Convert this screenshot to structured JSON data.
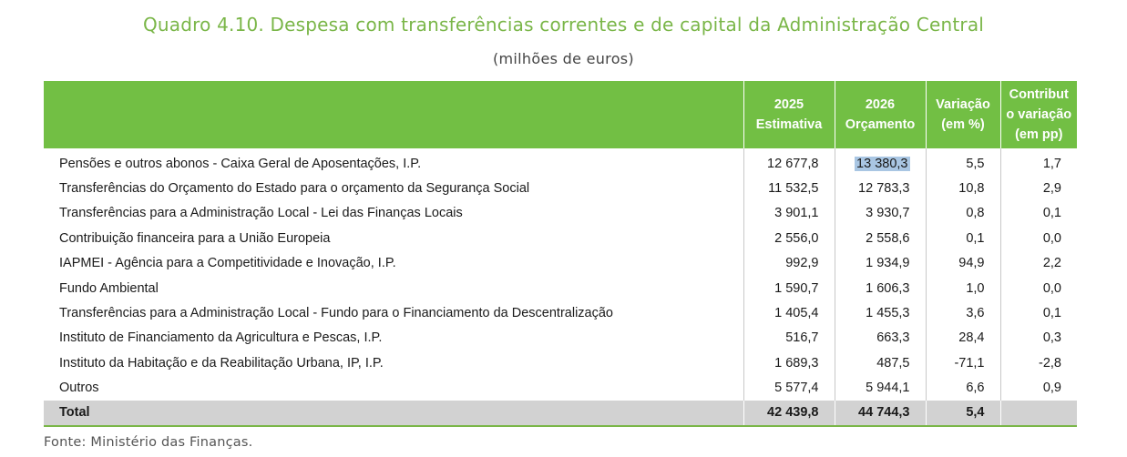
{
  "title": "Quadro 4.10. Despesa com transferências correntes e de capital da Administração Central",
  "subtitle": "(milhões de euros)",
  "headers": {
    "col1": [
      "2025",
      "Estimativa"
    ],
    "col2": [
      "2026",
      "Orçamento"
    ],
    "col3": [
      "Variação",
      "(em %)"
    ],
    "col4": [
      "Contribut",
      "o variação",
      "(em pp)"
    ]
  },
  "rows": [
    {
      "label": "Pensões e outros abonos - Caixa Geral de Aposentações, I.P.",
      "v2025": "12 677,8",
      "v2026": "13 380,3",
      "var": "5,5",
      "contrib": "1,7"
    },
    {
      "label": "Transferências do Orçamento do Estado para o orçamento da Segurança Social",
      "v2025": "11 532,5",
      "v2026": "12 783,3",
      "var": "10,8",
      "contrib": "2,9"
    },
    {
      "label": "Transferências para a Administração Local - Lei das Finanças Locais",
      "v2025": "3 901,1",
      "v2026": "3 930,7",
      "var": "0,8",
      "contrib": "0,1"
    },
    {
      "label": "Contribuição financeira para a União Europeia",
      "v2025": "2 556,0",
      "v2026": "2 558,6",
      "var": "0,1",
      "contrib": "0,0"
    },
    {
      "label": "IAPMEI - Agência para a Competitividade e Inovação, I.P.",
      "v2025": "992,9",
      "v2026": "1 934,9",
      "var": "94,9",
      "contrib": "2,2"
    },
    {
      "label": "Fundo Ambiental",
      "v2025": "1 590,7",
      "v2026": "1 606,3",
      "var": "1,0",
      "contrib": "0,0"
    },
    {
      "label": "Transferências para a Administração Local - Fundo para o Financiamento da Descentralização",
      "v2025": "1 405,4",
      "v2026": "1 455,3",
      "var": "3,6",
      "contrib": "0,1"
    },
    {
      "label": "Instituto de Financiamento da Agricultura e Pescas, I.P.",
      "v2025": "516,7",
      "v2026": "663,3",
      "var": "28,4",
      "contrib": "0,3"
    },
    {
      "label": "Instituto da Habitação e da Reabilitação Urbana, IP, I.P.",
      "v2025": "1 689,3",
      "v2026": "487,5",
      "var": "-71,1",
      "contrib": "-2,8"
    },
    {
      "label": "Outros",
      "v2025": "5 577,4",
      "v2026": "5 944,1",
      "var": "6,6",
      "contrib": "0,9"
    }
  ],
  "total": {
    "label": "Total",
    "v2025": "42 439,8",
    "v2026": "44 744,3",
    "var": "5,4",
    "contrib": ""
  },
  "source": "Fonte: Ministério das Finanças.",
  "colors": {
    "title": "#7ab648",
    "header_bg": "#72bf44",
    "total_bg": "#d2d2d2",
    "highlight": "#a9c6e3"
  }
}
